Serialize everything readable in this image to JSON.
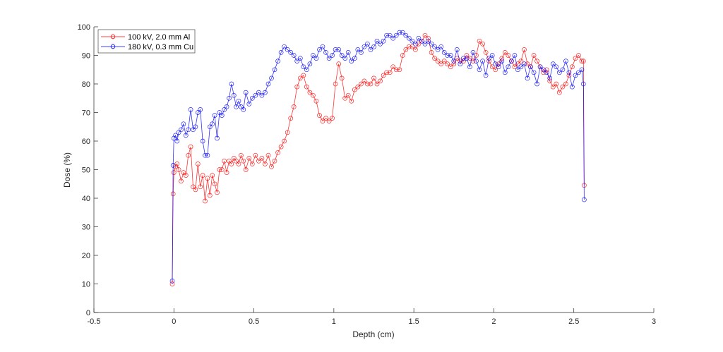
{
  "chart_data": {
    "type": "line",
    "title": "",
    "xlabel": "Depth (cm)",
    "ylabel": "Dose (%)",
    "xlim": [
      -0.5,
      3
    ],
    "ylim": [
      0,
      100
    ],
    "xticks": [
      "-0.5",
      "0",
      "0.5",
      "1",
      "1.5",
      "2",
      "2.5",
      "3"
    ],
    "yticks": [
      "0",
      "10",
      "20",
      "30",
      "40",
      "50",
      "60",
      "70",
      "80",
      "90",
      "100"
    ],
    "grid": false,
    "legend_position": "upper-left",
    "series": [
      {
        "name": "100 kV, 2.0 mm Al",
        "color": "#ff0000",
        "marker": "circle",
        "x": [
          -0.01,
          -0.005,
          0.0,
          0.01,
          0.02,
          0.03,
          0.045,
          0.06,
          0.075,
          0.09,
          0.105,
          0.12,
          0.135,
          0.15,
          0.165,
          0.18,
          0.195,
          0.21,
          0.225,
          0.24,
          0.255,
          0.27,
          0.285,
          0.3,
          0.315,
          0.33,
          0.345,
          0.36,
          0.375,
          0.39,
          0.405,
          0.42,
          0.435,
          0.45,
          0.47,
          0.49,
          0.51,
          0.53,
          0.55,
          0.57,
          0.59,
          0.61,
          0.63,
          0.65,
          0.67,
          0.69,
          0.71,
          0.73,
          0.75,
          0.77,
          0.79,
          0.81,
          0.83,
          0.85,
          0.87,
          0.89,
          0.91,
          0.93,
          0.95,
          0.97,
          0.99,
          1.01,
          1.03,
          1.05,
          1.07,
          1.09,
          1.11,
          1.13,
          1.15,
          1.17,
          1.19,
          1.21,
          1.23,
          1.25,
          1.27,
          1.29,
          1.31,
          1.33,
          1.35,
          1.37,
          1.39,
          1.41,
          1.43,
          1.45,
          1.47,
          1.49,
          1.51,
          1.53,
          1.55,
          1.57,
          1.59,
          1.61,
          1.63,
          1.65,
          1.67,
          1.69,
          1.71,
          1.73,
          1.75,
          1.77,
          1.79,
          1.81,
          1.83,
          1.85,
          1.87,
          1.89,
          1.91,
          1.93,
          1.95,
          1.97,
          1.99,
          2.01,
          2.03,
          2.05,
          2.07,
          2.09,
          2.11,
          2.13,
          2.15,
          2.17,
          2.19,
          2.21,
          2.23,
          2.25,
          2.27,
          2.29,
          2.31,
          2.33,
          2.35,
          2.37,
          2.39,
          2.41,
          2.43,
          2.45,
          2.47,
          2.49,
          2.51,
          2.53,
          2.55,
          2.56,
          2.565
        ],
        "y": [
          10,
          41.5,
          49,
          51,
          52,
          50,
          46,
          49,
          48,
          55,
          58,
          44,
          43,
          52,
          44,
          48,
          39,
          47,
          41,
          48,
          45,
          42,
          50,
          50,
          53,
          49,
          53,
          52,
          54,
          53,
          52,
          55,
          53,
          50,
          54,
          52,
          55,
          53,
          54,
          52,
          55,
          51,
          53,
          56,
          58,
          60,
          63,
          68,
          72,
          79,
          82,
          83,
          79,
          77,
          76,
          74,
          69,
          67,
          68,
          67,
          68,
          80,
          87,
          82,
          75,
          76,
          74,
          78,
          79,
          80,
          81,
          80,
          80,
          82,
          80,
          81,
          83,
          84,
          84,
          86,
          85,
          85,
          90,
          92,
          93,
          93,
          92,
          94,
          95,
          97,
          96,
          91,
          89,
          88,
          87,
          88,
          87,
          86,
          87,
          89,
          88,
          88,
          90,
          89,
          88,
          90,
          95,
          94,
          91,
          88,
          86,
          85,
          87,
          89,
          91,
          90,
          88,
          86,
          87,
          88,
          92,
          87,
          86,
          90,
          88,
          86,
          84,
          85,
          81,
          79,
          80,
          77,
          79,
          80,
          83,
          86,
          89,
          90,
          88,
          88,
          44.5
        ]
      },
      {
        "name": "180 kV, 0.3 mm Cu",
        "color": "#0000ff",
        "marker": "circle",
        "x": [
          -0.01,
          -0.005,
          0.0,
          0.01,
          0.02,
          0.03,
          0.045,
          0.06,
          0.075,
          0.09,
          0.105,
          0.12,
          0.135,
          0.15,
          0.165,
          0.18,
          0.195,
          0.21,
          0.225,
          0.24,
          0.255,
          0.27,
          0.285,
          0.3,
          0.315,
          0.33,
          0.345,
          0.36,
          0.375,
          0.39,
          0.405,
          0.42,
          0.435,
          0.45,
          0.47,
          0.49,
          0.51,
          0.53,
          0.55,
          0.57,
          0.59,
          0.61,
          0.63,
          0.65,
          0.67,
          0.69,
          0.71,
          0.73,
          0.75,
          0.77,
          0.79,
          0.81,
          0.83,
          0.85,
          0.87,
          0.89,
          0.91,
          0.93,
          0.95,
          0.97,
          0.99,
          1.01,
          1.03,
          1.05,
          1.07,
          1.09,
          1.11,
          1.13,
          1.15,
          1.17,
          1.19,
          1.21,
          1.23,
          1.25,
          1.27,
          1.29,
          1.31,
          1.33,
          1.35,
          1.37,
          1.39,
          1.41,
          1.43,
          1.45,
          1.47,
          1.49,
          1.51,
          1.53,
          1.55,
          1.57,
          1.59,
          1.61,
          1.63,
          1.65,
          1.67,
          1.69,
          1.71,
          1.73,
          1.75,
          1.77,
          1.79,
          1.81,
          1.83,
          1.85,
          1.87,
          1.89,
          1.91,
          1.93,
          1.95,
          1.97,
          1.99,
          2.01,
          2.03,
          2.05,
          2.07,
          2.09,
          2.11,
          2.13,
          2.15,
          2.17,
          2.19,
          2.21,
          2.23,
          2.25,
          2.27,
          2.29,
          2.31,
          2.33,
          2.35,
          2.37,
          2.39,
          2.41,
          2.43,
          2.45,
          2.47,
          2.49,
          2.51,
          2.53,
          2.55,
          2.56,
          2.565
        ],
        "y": [
          11,
          51.5,
          61,
          62,
          60,
          63,
          64,
          66,
          62,
          64,
          71,
          64,
          65,
          70,
          71,
          60,
          55,
          55,
          65,
          66,
          69,
          61,
          70,
          69,
          71,
          72,
          75,
          80,
          76,
          72,
          74,
          72,
          71,
          77,
          73,
          75,
          76,
          77,
          76,
          77,
          80,
          82,
          85,
          88,
          91,
          93,
          92,
          91,
          90,
          88,
          89,
          86,
          85,
          87,
          90,
          89,
          92,
          93,
          91,
          89,
          90,
          92,
          92,
          90,
          89,
          91,
          88,
          89,
          92,
          91,
          93,
          94,
          92,
          93,
          95,
          94,
          95,
          97,
          97,
          96,
          97,
          98,
          98,
          97,
          96,
          95,
          94,
          96,
          95,
          94,
          95,
          94,
          93,
          92,
          93,
          91,
          90,
          90,
          88,
          92,
          87,
          89,
          89,
          86,
          91,
          88,
          85,
          88,
          83,
          89,
          90,
          87,
          86,
          88,
          84,
          86,
          88,
          90,
          85,
          86,
          87,
          82,
          86,
          84,
          80,
          86,
          85,
          84,
          82,
          87,
          86,
          84,
          85,
          88,
          84,
          79,
          83,
          84,
          85,
          80,
          39.5
        ]
      }
    ]
  }
}
